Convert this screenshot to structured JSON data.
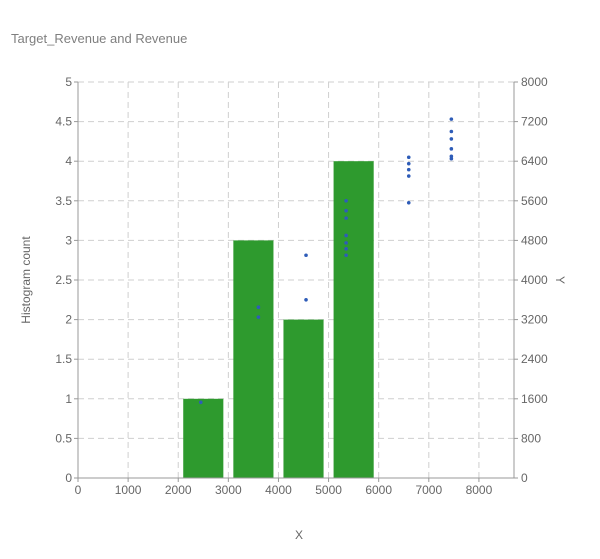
{
  "chart_data": {
    "type": "bar+scatter",
    "title": "Target_Revenue and Revenue",
    "xlabel": "X",
    "ylabel_left": "Histogram count",
    "ylabel_right": "Y",
    "xlim": [
      0,
      8700
    ],
    "ylim_left": [
      0,
      5
    ],
    "ylim_right": [
      0,
      8000
    ],
    "xticks": [
      "0",
      "1000",
      "2000",
      "3000",
      "4000",
      "5000",
      "6000",
      "7000",
      "8000"
    ],
    "yticks_left": [
      "0",
      "0.5",
      "1",
      "1.5",
      "2",
      "2.5",
      "3",
      "3.5",
      "4",
      "4.5",
      "5"
    ],
    "yticks_right": [
      "0",
      "800",
      "1600",
      "2400",
      "3200",
      "4000",
      "4800",
      "5600",
      "6400",
      "7200",
      "8000"
    ],
    "grid": true,
    "histogram": {
      "name": "Histogram",
      "color": "#2e9a2e",
      "bins": [
        {
          "x0": 2000,
          "x1": 3000,
          "count": 1
        },
        {
          "x0": 3000,
          "x1": 4000,
          "count": 3
        },
        {
          "x0": 4000,
          "x1": 5000,
          "count": 2
        },
        {
          "x0": 5000,
          "x1": 6000,
          "count": 4
        }
      ]
    },
    "scatter": {
      "name": "Revenue",
      "color": "#2e5cb8",
      "points": [
        {
          "x": 2450,
          "y": 1530
        },
        {
          "x": 3600,
          "y": 3450
        },
        {
          "x": 3600,
          "y": 3250
        },
        {
          "x": 4550,
          "y": 4500
        },
        {
          "x": 4550,
          "y": 3600
        },
        {
          "x": 5350,
          "y": 5600
        },
        {
          "x": 5350,
          "y": 5400
        },
        {
          "x": 5350,
          "y": 5250
        },
        {
          "x": 5350,
          "y": 4900
        },
        {
          "x": 5350,
          "y": 4750
        },
        {
          "x": 5350,
          "y": 4630
        },
        {
          "x": 5350,
          "y": 4500
        },
        {
          "x": 6600,
          "y": 6480
        },
        {
          "x": 6600,
          "y": 6350
        },
        {
          "x": 6600,
          "y": 6230
        },
        {
          "x": 6600,
          "y": 6100
        },
        {
          "x": 6600,
          "y": 5560
        },
        {
          "x": 7450,
          "y": 7250
        },
        {
          "x": 7450,
          "y": 7000
        },
        {
          "x": 7450,
          "y": 6850
        },
        {
          "x": 7450,
          "y": 6650
        },
        {
          "x": 7450,
          "y": 6500
        },
        {
          "x": 7450,
          "y": 6450
        }
      ]
    }
  }
}
